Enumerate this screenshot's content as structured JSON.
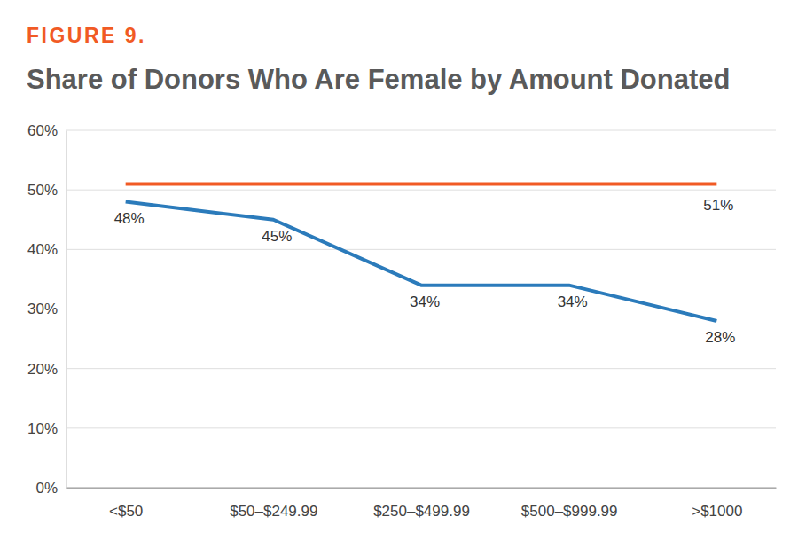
{
  "chart_data": {
    "type": "line",
    "figure_label": "FIGURE 9.",
    "title": "Share of Donors Who Are Female by Amount Donated",
    "categories": [
      "<$50",
      "$50–$249.99",
      "$250–$499.99",
      "$500–$999.99",
      ">$1000"
    ],
    "values": [
      48,
      45,
      34,
      34,
      28
    ],
    "value_labels": [
      "48%",
      "45%",
      "34%",
      "34%",
      "28%"
    ],
    "color": "#2b7bbb",
    "data_labels": true,
    "reference": {
      "value": 51,
      "label": "51%",
      "color": "#f15a24"
    },
    "ylim": [
      0,
      60
    ],
    "yticks": [
      {
        "value": 0,
        "label": "0%"
      },
      {
        "value": 10,
        "label": "10%"
      },
      {
        "value": 20,
        "label": "20%"
      },
      {
        "value": 30,
        "label": "30%"
      },
      {
        "value": 40,
        "label": "40%"
      },
      {
        "value": 50,
        "label": "50%"
      },
      {
        "value": 60,
        "label": "60%"
      }
    ],
    "grid": true
  }
}
